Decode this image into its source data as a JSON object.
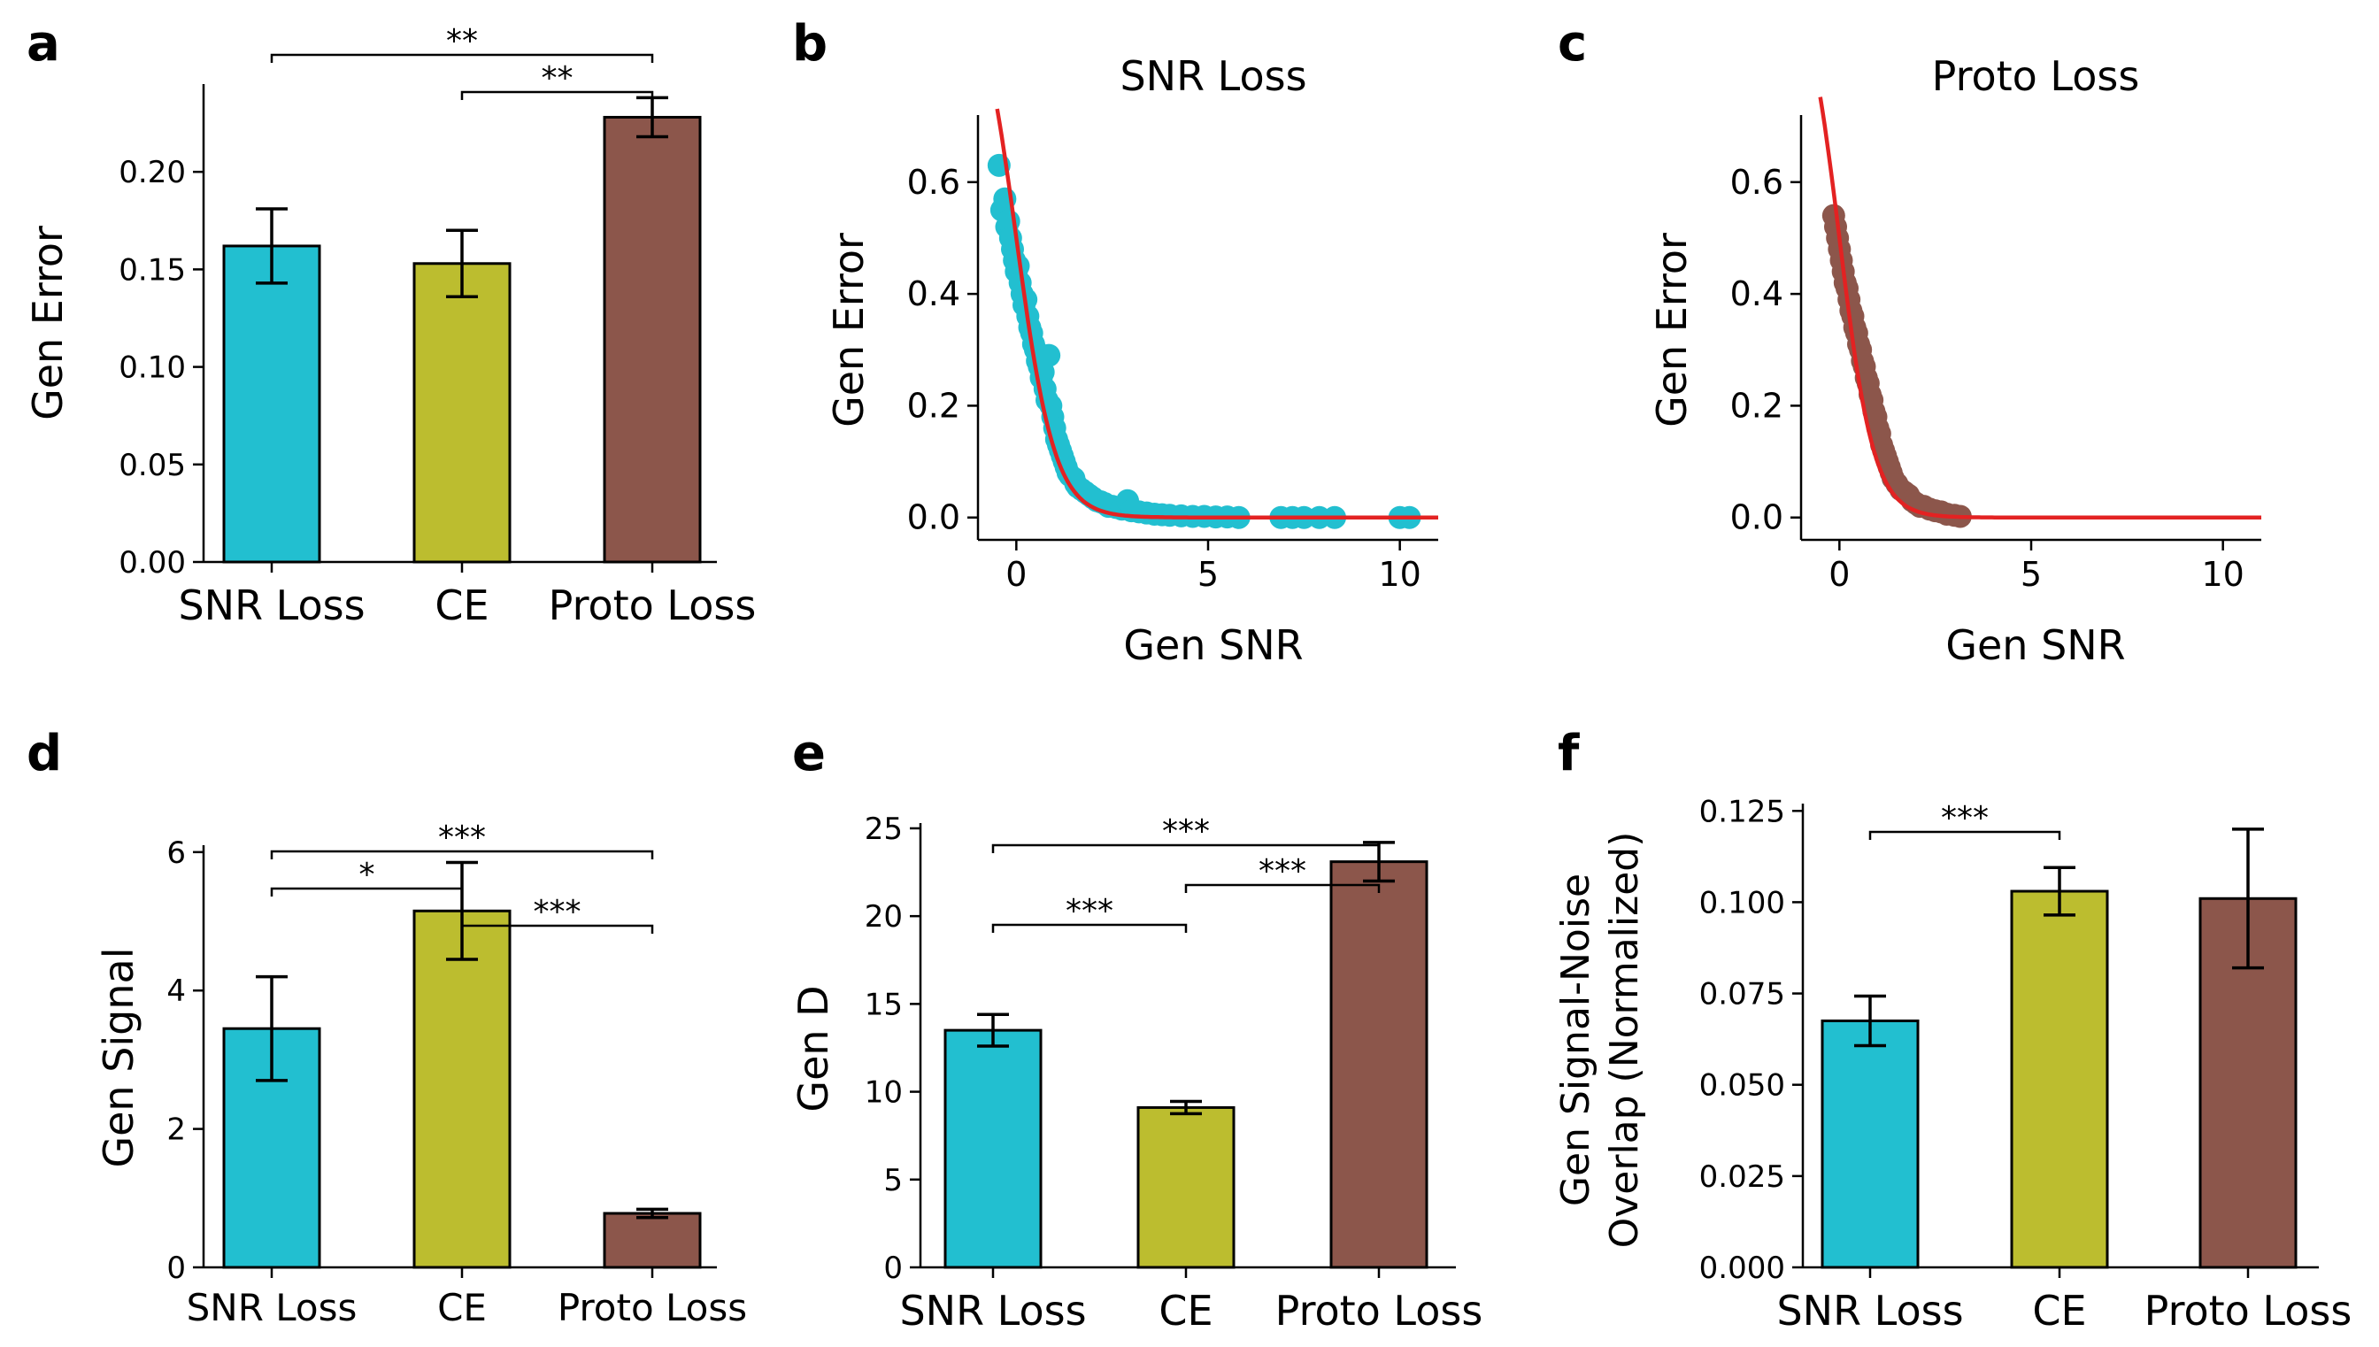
{
  "colors": {
    "snr": "#22BFD0",
    "ce": "#BCBD2F",
    "proto": "#8C564B",
    "fit": "#E32222",
    "axis": "#000000"
  },
  "panels": {
    "a": {
      "letter": "a",
      "chart_data": {
        "type": "bar",
        "title": "",
        "xlabel": "",
        "ylabel": "Gen Error",
        "categories": [
          "SNR Loss",
          "CE",
          "Proto Loss"
        ],
        "values": [
          0.162,
          0.153,
          0.228
        ],
        "errors": [
          0.019,
          0.017,
          0.01
        ],
        "ylim": [
          0,
          0.245
        ],
        "yticks": [
          0.0,
          0.05,
          0.1,
          0.15,
          0.2
        ],
        "ytick_labels": [
          "0.00",
          "0.05",
          "0.10",
          "0.15",
          "0.20"
        ],
        "significance": [
          {
            "from": 0,
            "to": 2,
            "label": "**",
            "level": 2
          },
          {
            "from": 1,
            "to": 2,
            "label": "**",
            "level": 1
          }
        ]
      }
    },
    "b": {
      "letter": "b",
      "chart_data": {
        "type": "scatter",
        "title": "SNR Loss",
        "xlabel": "Gen SNR",
        "ylabel": "Gen Error",
        "xlim": [
          -1,
          11
        ],
        "ylim": [
          -0.04,
          0.72
        ],
        "xticks": [
          0,
          5,
          10
        ],
        "xtick_labels": [
          "0",
          "5",
          "10"
        ],
        "yticks": [
          0.0,
          0.2,
          0.4,
          0.6
        ],
        "ytick_labels": [
          "0.0",
          "0.2",
          "0.4",
          "0.6"
        ],
        "fit_curve": {
          "model": "logistic",
          "amplitude": 1.0,
          "midpoint": 0.0,
          "scale": 0.5,
          "x_range": [
            -0.5,
            11
          ]
        },
        "points": [
          [
            -0.45,
            0.63
          ],
          [
            -0.38,
            0.55
          ],
          [
            -0.3,
            0.57
          ],
          [
            -0.25,
            0.52
          ],
          [
            -0.2,
            0.53
          ],
          [
            -0.15,
            0.5
          ],
          [
            -0.1,
            0.48
          ],
          [
            -0.05,
            0.46
          ],
          [
            0.0,
            0.44
          ],
          [
            0.05,
            0.45
          ],
          [
            0.1,
            0.42
          ],
          [
            0.15,
            0.4
          ],
          [
            0.2,
            0.38
          ],
          [
            0.25,
            0.39
          ],
          [
            0.3,
            0.36
          ],
          [
            0.35,
            0.34
          ],
          [
            0.4,
            0.33
          ],
          [
            0.45,
            0.31
          ],
          [
            0.5,
            0.3
          ],
          [
            0.55,
            0.28
          ],
          [
            0.6,
            0.27
          ],
          [
            0.65,
            0.25
          ],
          [
            0.7,
            0.26
          ],
          [
            0.75,
            0.23
          ],
          [
            0.8,
            0.21
          ],
          [
            0.85,
            0.29
          ],
          [
            0.9,
            0.2
          ],
          [
            0.95,
            0.18
          ],
          [
            1.0,
            0.16
          ],
          [
            1.05,
            0.14
          ],
          [
            1.1,
            0.13
          ],
          [
            1.15,
            0.12
          ],
          [
            1.2,
            0.11
          ],
          [
            1.25,
            0.1
          ],
          [
            1.3,
            0.09
          ],
          [
            1.35,
            0.08
          ],
          [
            1.4,
            0.075
          ],
          [
            1.5,
            0.07
          ],
          [
            1.55,
            0.06
          ],
          [
            1.6,
            0.055
          ],
          [
            1.7,
            0.05
          ],
          [
            1.8,
            0.045
          ],
          [
            1.9,
            0.04
          ],
          [
            2.0,
            0.035
          ],
          [
            2.1,
            0.03
          ],
          [
            2.2,
            0.028
          ],
          [
            2.3,
            0.025
          ],
          [
            2.4,
            0.02
          ],
          [
            2.5,
            0.02
          ],
          [
            2.6,
            0.018
          ],
          [
            2.75,
            0.015
          ],
          [
            2.9,
            0.03
          ],
          [
            3.0,
            0.012
          ],
          [
            3.2,
            0.01
          ],
          [
            3.4,
            0.008
          ],
          [
            3.6,
            0.006
          ],
          [
            3.8,
            0.005
          ],
          [
            4.0,
            0.004
          ],
          [
            4.3,
            0.003
          ],
          [
            4.6,
            0.002
          ],
          [
            4.9,
            0.002
          ],
          [
            5.2,
            0.001
          ],
          [
            5.5,
            0.001
          ],
          [
            5.8,
            0.0
          ],
          [
            6.9,
            0.0
          ],
          [
            7.2,
            0.0
          ],
          [
            7.5,
            0.0
          ],
          [
            7.9,
            0.0
          ],
          [
            8.3,
            0.0
          ],
          [
            10.0,
            0.0
          ],
          [
            10.25,
            0.0
          ]
        ]
      }
    },
    "c": {
      "letter": "c",
      "chart_data": {
        "type": "scatter",
        "title": "Proto Loss",
        "xlabel": "Gen SNR",
        "ylabel": "Gen Error",
        "xlim": [
          -1,
          11
        ],
        "ylim": [
          -0.04,
          0.72
        ],
        "xticks": [
          0,
          5,
          10
        ],
        "xtick_labels": [
          "0",
          "5",
          "10"
        ],
        "yticks": [
          0.0,
          0.2,
          0.4,
          0.6
        ],
        "ytick_labels": [
          "0.0",
          "0.2",
          "0.4",
          "0.6"
        ],
        "fit_curve": {
          "model": "logistic",
          "amplitude": 1.0,
          "midpoint": 0.0,
          "scale": 0.45,
          "x_range": [
            -0.5,
            11
          ]
        },
        "points": [
          [
            -0.15,
            0.54
          ],
          [
            -0.1,
            0.52
          ],
          [
            -0.05,
            0.5
          ],
          [
            0.0,
            0.48
          ],
          [
            0.05,
            0.46
          ],
          [
            0.1,
            0.44
          ],
          [
            0.15,
            0.42
          ],
          [
            0.2,
            0.41
          ],
          [
            0.25,
            0.39
          ],
          [
            0.3,
            0.37
          ],
          [
            0.35,
            0.36
          ],
          [
            0.4,
            0.34
          ],
          [
            0.45,
            0.33
          ],
          [
            0.5,
            0.31
          ],
          [
            0.55,
            0.3
          ],
          [
            0.6,
            0.28
          ],
          [
            0.65,
            0.27
          ],
          [
            0.7,
            0.25
          ],
          [
            0.75,
            0.24
          ],
          [
            0.8,
            0.22
          ],
          [
            0.85,
            0.21
          ],
          [
            0.9,
            0.19
          ],
          [
            0.95,
            0.18
          ],
          [
            1.0,
            0.16
          ],
          [
            1.05,
            0.15
          ],
          [
            1.1,
            0.13
          ],
          [
            1.15,
            0.12
          ],
          [
            1.2,
            0.11
          ],
          [
            1.25,
            0.1
          ],
          [
            1.3,
            0.09
          ],
          [
            1.35,
            0.08
          ],
          [
            1.4,
            0.07
          ],
          [
            1.5,
            0.06
          ],
          [
            1.6,
            0.05
          ],
          [
            1.7,
            0.045
          ],
          [
            1.8,
            0.04
          ],
          [
            1.9,
            0.03
          ],
          [
            2.0,
            0.025
          ],
          [
            2.1,
            0.02
          ],
          [
            2.2,
            0.02
          ],
          [
            2.35,
            0.015
          ],
          [
            2.5,
            0.012
          ],
          [
            2.65,
            0.01
          ],
          [
            2.8,
            0.006
          ],
          [
            3.0,
            0.004
          ],
          [
            3.15,
            0.002
          ]
        ]
      }
    },
    "d": {
      "letter": "d",
      "chart_data": {
        "type": "bar",
        "title": "",
        "xlabel": "",
        "ylabel": "Gen Signal",
        "categories": [
          "SNR Loss",
          "CE",
          "Proto Loss"
        ],
        "values": [
          3.45,
          5.15,
          0.78
        ],
        "errors": [
          0.75,
          0.7,
          0.06
        ],
        "ylim": [
          0,
          6.1
        ],
        "yticks": [
          0,
          2,
          4,
          6
        ],
        "ytick_labels": [
          "0",
          "2",
          "4",
          "6"
        ],
        "significance": [
          {
            "from": 0,
            "to": 2,
            "label": "***",
            "level": 3
          },
          {
            "from": 0,
            "to": 1,
            "label": "*",
            "level": 2
          },
          {
            "from": 1,
            "to": 2,
            "label": "***",
            "level": 1
          }
        ]
      }
    },
    "e": {
      "letter": "e",
      "chart_data": {
        "type": "bar",
        "title": "",
        "xlabel": "",
        "ylabel": "Gen D",
        "categories": [
          "SNR Loss",
          "CE",
          "Proto Loss"
        ],
        "values": [
          13.5,
          9.1,
          23.1
        ],
        "errors": [
          0.9,
          0.35,
          1.1
        ],
        "ylim": [
          0,
          25.3
        ],
        "yticks": [
          0,
          5,
          10,
          15,
          20,
          25
        ],
        "ytick_labels": [
          "0",
          "5",
          "10",
          "15",
          "20",
          "25"
        ],
        "significance": [
          {
            "from": 0,
            "to": 2,
            "label": "***",
            "level": 3
          },
          {
            "from": 0,
            "to": 1,
            "label": "***",
            "level": 1
          },
          {
            "from": 1,
            "to": 2,
            "label": "***",
            "level": 2
          }
        ]
      }
    },
    "f": {
      "letter": "f",
      "chart_data": {
        "type": "bar",
        "title": "",
        "xlabel": "",
        "ylabel_lines": [
          "Gen Signal-Noise",
          "Overlap (Normalized)"
        ],
        "categories": [
          "SNR Loss",
          "CE",
          "Proto Loss"
        ],
        "values": [
          0.0675,
          0.103,
          0.101
        ],
        "errors": [
          0.0068,
          0.0065,
          0.019
        ],
        "ylim": [
          0,
          0.127
        ],
        "yticks": [
          0.0,
          0.025,
          0.05,
          0.075,
          0.1,
          0.125
        ],
        "ytick_labels": [
          "0.000",
          "0.025",
          "0.050",
          "0.075",
          "0.100",
          "0.125"
        ],
        "significance": [
          {
            "from": 0,
            "to": 1,
            "label": "***",
            "level": 1
          }
        ]
      }
    }
  }
}
